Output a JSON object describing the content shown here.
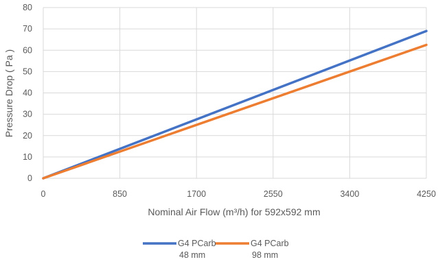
{
  "chart_data": {
    "type": "line",
    "title": "",
    "xlabel": "Nominal Air Flow (m³/h) for 592x592 mm",
    "ylabel": "Pressure Drop ( Pa )",
    "x_ticks": [
      "0",
      "850",
      "1700",
      "2550",
      "3400",
      "4250"
    ],
    "y_ticks": [
      "0",
      "10",
      "20",
      "30",
      "40",
      "50",
      "60",
      "70",
      "80"
    ],
    "xlim": [
      0,
      4250
    ],
    "ylim": [
      0,
      80
    ],
    "grid": true,
    "legend_position": "bottom",
    "series": [
      {
        "name": "G4 PCarb 48 mm",
        "name_lines": [
          "G4 PCarb",
          "48 mm"
        ],
        "color": "#4472C4",
        "x": [
          0,
          4250
        ],
        "y": [
          0,
          69
        ]
      },
      {
        "name": "G4 PCarb 98 mm",
        "name_lines": [
          "G4 PCarb",
          "98 mm"
        ],
        "color": "#ED7D31",
        "x": [
          0,
          4250
        ],
        "y": [
          0,
          62.5
        ]
      }
    ]
  }
}
